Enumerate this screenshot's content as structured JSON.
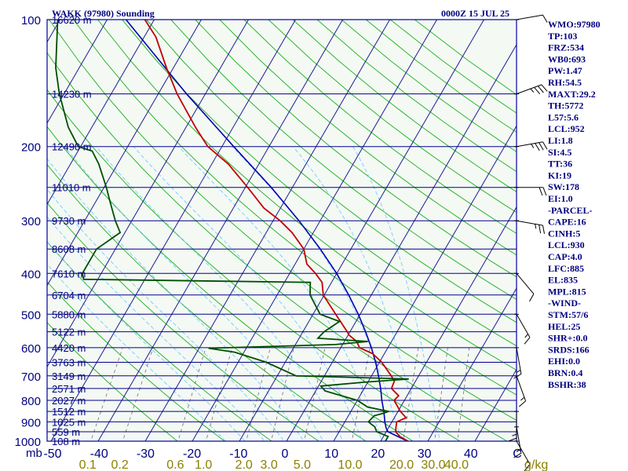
{
  "header": {
    "station": "WAKK (97980) Sounding",
    "time": "0000Z 15 JUL 25"
  },
  "units": {
    "pressure": "mb",
    "mixing_ratio": "g/kg"
  },
  "chart_data": {
    "type": "line",
    "pressure_ticks": [
      100,
      200,
      300,
      400,
      500,
      600,
      700,
      800,
      900,
      1000
    ],
    "temperature_ticks": [
      "-50",
      "-40",
      "-30",
      "-20",
      "-10",
      "0",
      "10",
      "20",
      "30",
      "40",
      "C"
    ],
    "mixing_ratio_ticks": [
      "0.1",
      "0.2",
      "0.6",
      "1.0",
      "2.0",
      "3.0",
      "5.0",
      "10.0",
      "20.0",
      "30.0",
      "40.0"
    ],
    "height_labels": [
      {
        "p": 100,
        "label": "16620 m"
      },
      {
        "p": 150,
        "label": "14230 m"
      },
      {
        "p": 200,
        "label": "12490 m"
      },
      {
        "p": 250,
        "label": "11010 m"
      },
      {
        "p": 300,
        "label": "9730 m"
      },
      {
        "p": 350,
        "label": "8608 m"
      },
      {
        "p": 400,
        "label": "7610 m"
      },
      {
        "p": 450,
        "label": "6704 m"
      },
      {
        "p": 500,
        "label": "5880 m"
      },
      {
        "p": 550,
        "label": "5122 m"
      },
      {
        "p": 600,
        "label": "4420 m"
      },
      {
        "p": 650,
        "label": "3763 m"
      },
      {
        "p": 700,
        "label": "3149 m"
      },
      {
        "p": 750,
        "label": "2571 m"
      },
      {
        "p": 800,
        "label": "2027 m"
      },
      {
        "p": 850,
        "label": "1512 m"
      },
      {
        "p": 900,
        "label": "1025 m"
      },
      {
        "p": 950,
        "label": "559 m"
      },
      {
        "p": 1000,
        "label": "108 m"
      }
    ],
    "temperature_profile": [
      [
        1008,
        26.5
      ],
      [
        1000,
        25.8
      ],
      [
        975,
        23.5
      ],
      [
        950,
        22.0
      ],
      [
        925,
        21.5
      ],
      [
        900,
        21.0
      ],
      [
        880,
        22.5
      ],
      [
        850,
        20.5
      ],
      [
        800,
        17.8
      ],
      [
        780,
        18.2
      ],
      [
        750,
        15.8
      ],
      [
        720,
        15.5
      ],
      [
        700,
        14.2
      ],
      [
        650,
        10.5
      ],
      [
        620,
        7.5
      ],
      [
        600,
        4.0
      ],
      [
        580,
        2.6
      ],
      [
        560,
        0.2
      ],
      [
        550,
        -0.6
      ],
      [
        500,
        -5.2
      ],
      [
        450,
        -10.2
      ],
      [
        420,
        -12.0
      ],
      [
        400,
        -14.5
      ],
      [
        380,
        -17.5
      ],
      [
        350,
        -20.0
      ],
      [
        320,
        -24.5
      ],
      [
        300,
        -28.5
      ],
      [
        280,
        -33.5
      ],
      [
        250,
        -39.5
      ],
      [
        220,
        -46.5
      ],
      [
        200,
        -53.0
      ],
      [
        180,
        -58.0
      ],
      [
        150,
        -66.0
      ],
      [
        130,
        -71.5
      ],
      [
        110,
        -77.5
      ],
      [
        100,
        -82.0
      ]
    ],
    "dewpoint_profile": [
      [
        1008,
        20.0
      ],
      [
        1000,
        21.0
      ],
      [
        975,
        21.0
      ],
      [
        950,
        18.0
      ],
      [
        925,
        17.0
      ],
      [
        900,
        15.0
      ],
      [
        870,
        15.5
      ],
      [
        860,
        17.0
      ],
      [
        850,
        18.0
      ],
      [
        830,
        13.0
      ],
      [
        800,
        10.0
      ],
      [
        760,
        2.0
      ],
      [
        740,
        0.5
      ],
      [
        725,
        9.0
      ],
      [
        712,
        18.3
      ],
      [
        705,
        4.5
      ],
      [
        700,
        -6.0
      ],
      [
        650,
        -14.0
      ],
      [
        615,
        -22.0
      ],
      [
        602,
        -28.0
      ],
      [
        590,
        -1.5
      ],
      [
        580,
        5.0
      ],
      [
        570,
        -6.0
      ],
      [
        550,
        -5.5
      ],
      [
        520,
        -3.5
      ],
      [
        500,
        -8.5
      ],
      [
        450,
        -13.0
      ],
      [
        420,
        -14.5
      ],
      [
        413,
        -63.0
      ],
      [
        400,
        -64.0
      ],
      [
        350,
        -64.0
      ],
      [
        320,
        -61.0
      ],
      [
        300,
        -63.5
      ],
      [
        270,
        -67.0
      ],
      [
        250,
        -69.5
      ],
      [
        220,
        -74.0
      ],
      [
        205,
        -77.0
      ],
      [
        200,
        -80.5
      ],
      [
        180,
        -85.0
      ],
      [
        150,
        -91.0
      ],
      [
        130,
        -95.0
      ],
      [
        110,
        -98.5
      ],
      [
        100,
        -100.5
      ]
    ],
    "parcel_profile": [
      [
        1008,
        26.5
      ],
      [
        950,
        20.4
      ],
      [
        930,
        19.5
      ],
      [
        900,
        18.5
      ],
      [
        850,
        17.0
      ],
      [
        800,
        15.2
      ],
      [
        750,
        13.5
      ],
      [
        700,
        11.5
      ],
      [
        650,
        9.2
      ],
      [
        600,
        6.5
      ],
      [
        550,
        3.3
      ],
      [
        500,
        -0.4
      ],
      [
        450,
        -4.8
      ],
      [
        400,
        -10.0
      ],
      [
        350,
        -16.5
      ],
      [
        300,
        -24.5
      ],
      [
        250,
        -34.5
      ],
      [
        200,
        -47.5
      ],
      [
        150,
        -64.0
      ],
      [
        100,
        -86.0
      ]
    ],
    "wind_barbs": [
      {
        "p": 1000,
        "dir": 150,
        "kt": 5
      },
      {
        "p": 925,
        "dir": 170,
        "kt": 5
      },
      {
        "p": 850,
        "dir": 180,
        "kt": 5
      },
      {
        "p": 700,
        "dir": 160,
        "kt": 5
      },
      {
        "p": 600,
        "dir": 170,
        "kt": 5
      },
      {
        "p": 500,
        "dir": 150,
        "kt": 5
      },
      {
        "p": 400,
        "dir": 140,
        "kt": 10
      },
      {
        "p": 300,
        "dir": 100,
        "kt": 15
      },
      {
        "p": 250,
        "dir": 90,
        "kt": 20
      },
      {
        "p": 200,
        "dir": 80,
        "kt": 25
      },
      {
        "p": 150,
        "dir": 70,
        "kt": 25
      },
      {
        "p": 100,
        "dir": 80,
        "kt": 10
      }
    ],
    "series": [
      {
        "key": "temperature",
        "color": "#c00000"
      },
      {
        "key": "dewpoint",
        "color": "#004d00"
      },
      {
        "key": "parcel",
        "color": "#0000b0"
      }
    ],
    "grid": true
  },
  "indices": [
    "WMO:97980",
    "TP:103",
    "FRZ:534",
    "WB0:693",
    "PW:1.47",
    "RH:54.5",
    "MAXT:29.2",
    "TH:5772",
    "L57:5.6",
    "LCL:952",
    "LI:1.8",
    "SI:4.5",
    "TT:36",
    "KI:19",
    "SW:178",
    "EI:1.0",
    "-PARCEL-",
    "CAPE:16",
    "CINH:5",
    "LCL:930",
    "CAP:4.0",
    "LFC:885",
    "EL:835",
    "MPL:815",
    "-WIND-",
    "STM:57/6",
    "HEL:25",
    "SHR+:0.0",
    "SRDS:166",
    "EHI:0.0",
    "BRN:0.4",
    "BSHR:38"
  ],
  "colors": {
    "frame": "#0000a0",
    "isobar": "#00008b",
    "isotherm": "#1c1c90",
    "dry_adiabat": "#2db52d",
    "moist_adiabat": "#7fd0ff",
    "mixing_ratio": "#707070",
    "background": "#f4f9f4"
  }
}
